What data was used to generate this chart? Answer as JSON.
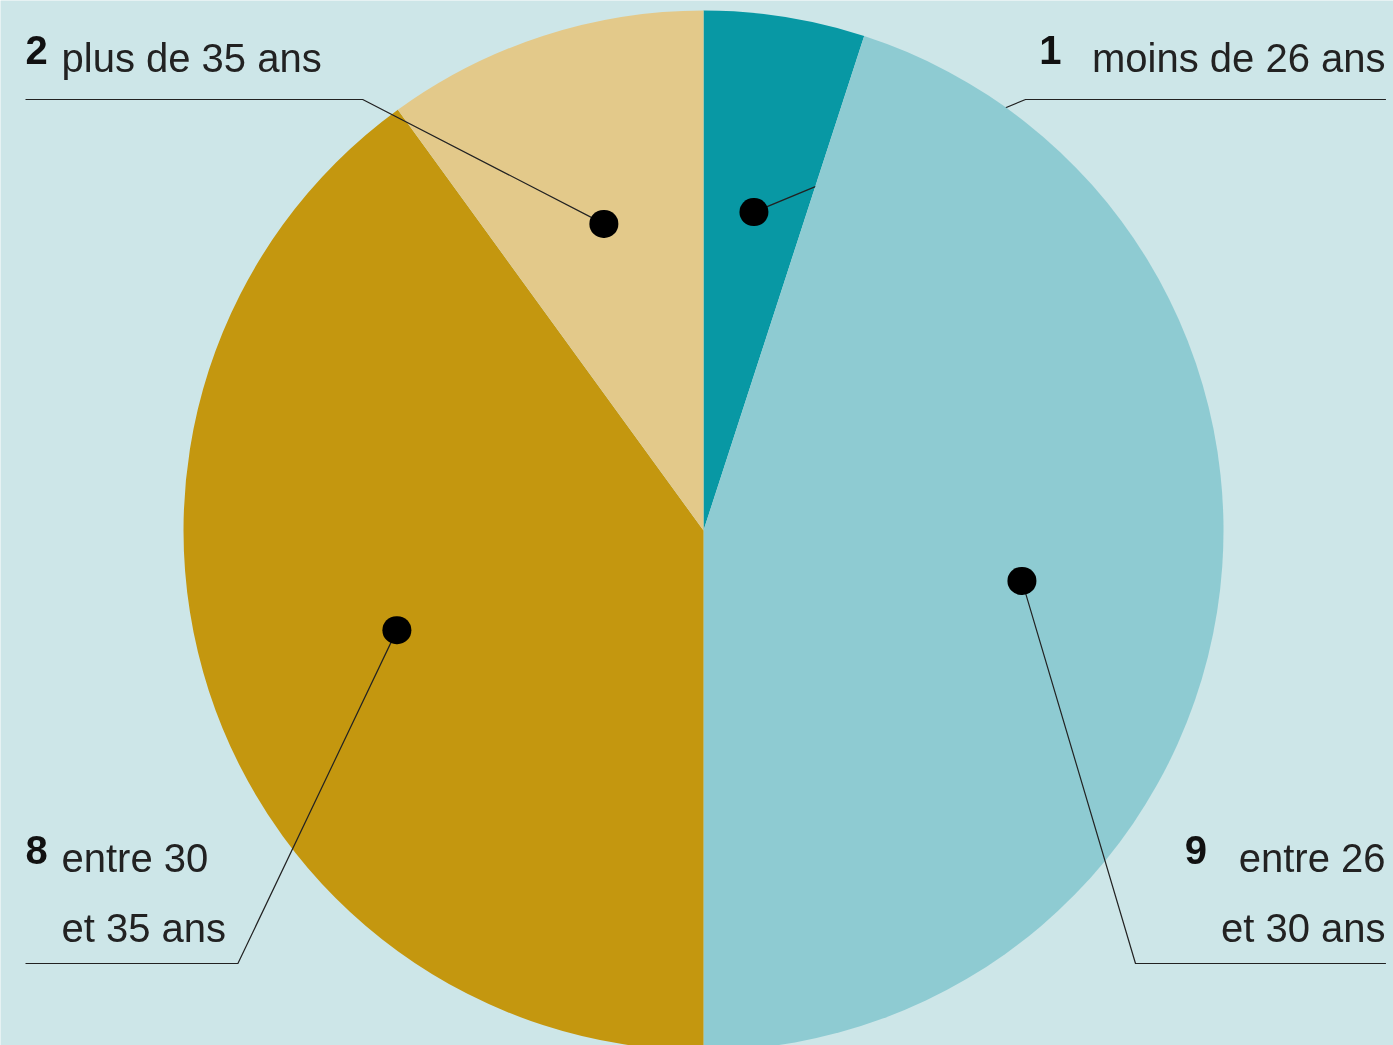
{
  "chart_data": {
    "type": "pie",
    "categories": [
      "moins de 26 ans",
      "entre 26 et 30 ans",
      "entre 30 et 35 ans",
      "plus de 35 ans"
    ],
    "values": [
      1,
      9,
      8,
      2
    ],
    "colors": [
      "#0898a4",
      "#8ecbd2",
      "#c4970f",
      "#e3c98a"
    ],
    "data_labels": true
  }
}
